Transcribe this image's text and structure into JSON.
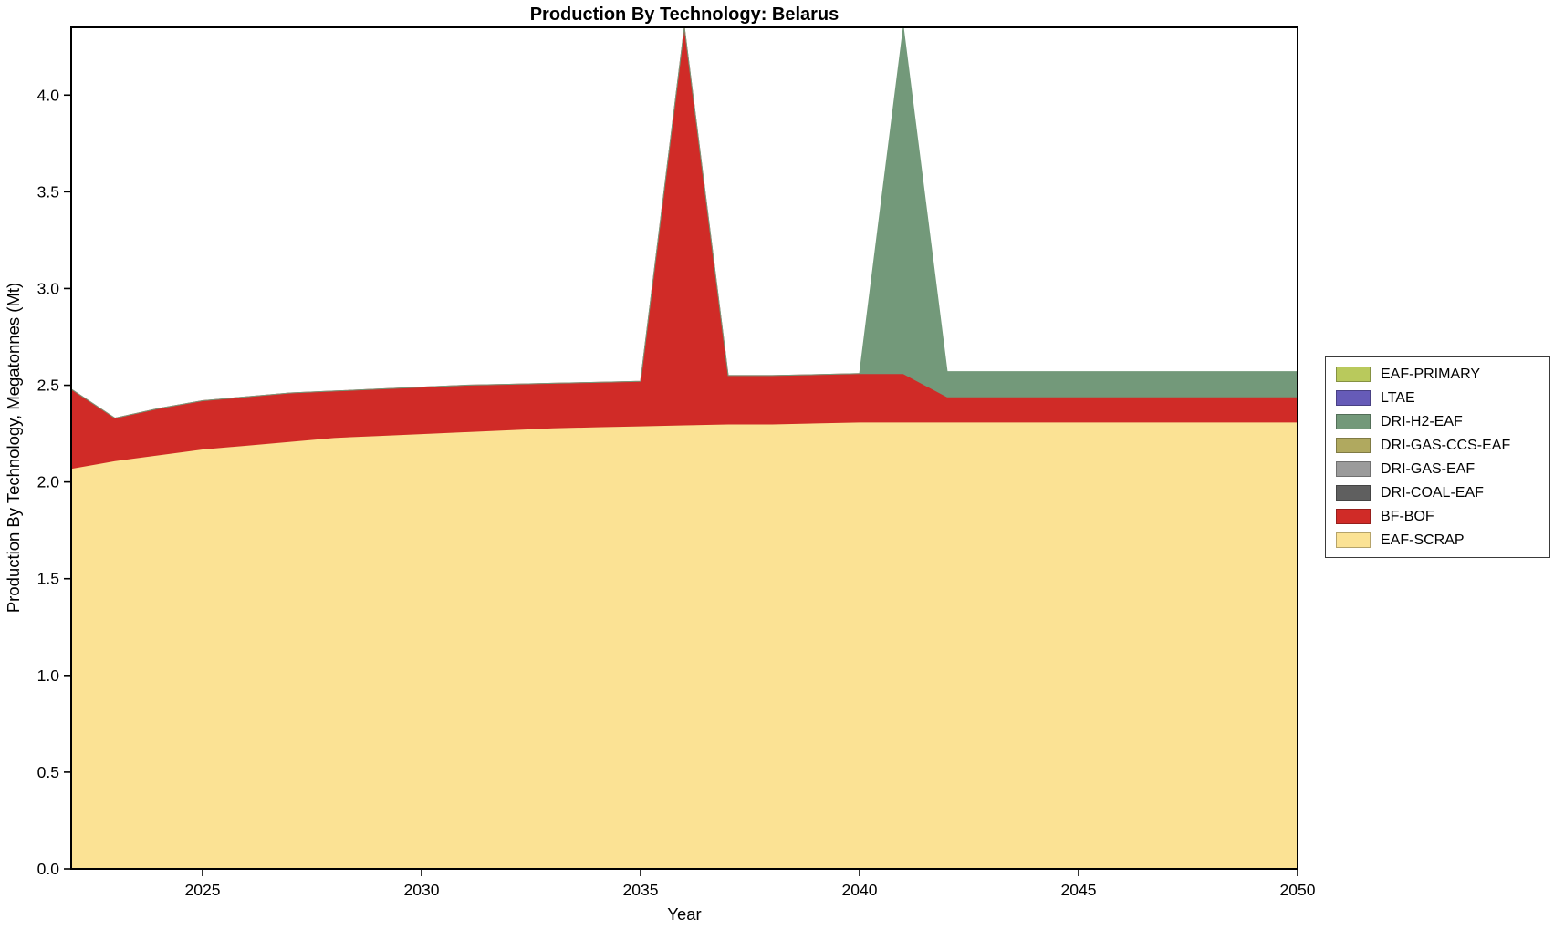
{
  "title": "Production By Technology: Belarus",
  "xlabel": "Year",
  "ylabel": "Production By Technology, Megatonnes (Mt)",
  "chart_data": {
    "type": "area",
    "stacked": true,
    "x": [
      2022,
      2023,
      2024,
      2025,
      2026,
      2027,
      2028,
      2029,
      2030,
      2031,
      2032,
      2033,
      2034,
      2035,
      2036,
      2037,
      2038,
      2039,
      2040,
      2041,
      2042,
      2043,
      2044,
      2045,
      2046,
      2047,
      2048,
      2049,
      2050
    ],
    "xlim": [
      2022,
      2050
    ],
    "ylim": [
      0,
      4.35
    ],
    "xticks": [
      2025,
      2030,
      2035,
      2040,
      2045,
      2050
    ],
    "yticks": [
      0,
      0.5,
      1,
      1.5,
      2,
      2.5,
      3,
      3.5,
      4
    ],
    "grid": false,
    "background": "#ffffff",
    "series": [
      {
        "name": "EAF-SCRAP",
        "color": "#fbe294",
        "values": [
          2.07,
          2.11,
          2.14,
          2.17,
          2.19,
          2.21,
          2.23,
          2.24,
          2.25,
          2.26,
          2.27,
          2.28,
          2.285,
          2.29,
          2.295,
          2.3,
          2.3,
          2.305,
          2.31,
          2.31,
          2.31,
          2.31,
          2.31,
          2.31,
          2.31,
          2.31,
          2.31,
          2.31,
          2.31
        ]
      },
      {
        "name": "BF-BOF",
        "color": "#d02b27",
        "values": [
          0.41,
          0.22,
          0.24,
          0.25,
          0.25,
          0.25,
          0.24,
          0.24,
          0.24,
          0.24,
          0.235,
          0.23,
          0.23,
          0.23,
          2.055,
          0.25,
          0.25,
          0.25,
          0.25,
          0.25,
          0.13,
          0.13,
          0.13,
          0.13,
          0.13,
          0.13,
          0.13,
          0.13,
          0.13
        ]
      },
      {
        "name": "DRI-COAL-EAF",
        "color": "#5f5f5f",
        "values": 0
      },
      {
        "name": "DRI-GAS-EAF",
        "color": "#9b9b9b",
        "values": 0
      },
      {
        "name": "DRI-GAS-CCS-EAF",
        "color": "#b0a95f",
        "values": 0
      },
      {
        "name": "DRI-H2-EAF",
        "color": "#73997a",
        "values": [
          0,
          0,
          0,
          0,
          0,
          0,
          0,
          0,
          0,
          0,
          0,
          0,
          0,
          0,
          0,
          0,
          0,
          0,
          0,
          1.79,
          0.13,
          0.13,
          0.13,
          0.13,
          0.13,
          0.13,
          0.13,
          0.13,
          0.13
        ]
      },
      {
        "name": "LTAE",
        "color": "#665bb8",
        "values": 0
      },
      {
        "name": "EAF-PRIMARY",
        "color": "#b9c95c",
        "values": 0
      }
    ],
    "legend": {
      "position": "center-right-outside",
      "entries": [
        {
          "label": "EAF-PRIMARY",
          "color": "#b9c95c"
        },
        {
          "label": "LTAE",
          "color": "#665bb8"
        },
        {
          "label": "DRI-H2-EAF",
          "color": "#73997a"
        },
        {
          "label": "DRI-GAS-CCS-EAF",
          "color": "#b0a95f"
        },
        {
          "label": "DRI-GAS-EAF",
          "color": "#9b9b9b"
        },
        {
          "label": "DRI-COAL-EAF",
          "color": "#5f5f5f"
        },
        {
          "label": "BF-BOF",
          "color": "#d02b27"
        },
        {
          "label": "EAF-SCRAP",
          "color": "#fbe294"
        }
      ]
    }
  }
}
